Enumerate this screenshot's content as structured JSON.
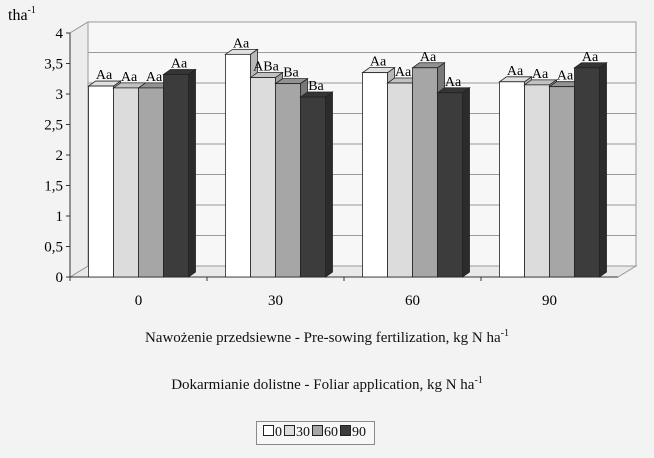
{
  "chart_data": {
    "type": "bar",
    "style": "3d-clustered-column",
    "ylabel": "tha",
    "ylabel_superscript": "-1",
    "ylim": [
      0,
      4
    ],
    "yticks": [
      "0",
      "0,5",
      "1",
      "1,5",
      "2",
      "2,5",
      "3",
      "3,5",
      "4"
    ],
    "ytick_values": [
      0,
      0.5,
      1,
      1.5,
      2,
      2.5,
      3,
      3.5,
      4
    ],
    "categories": [
      "0",
      "30",
      "60",
      "90"
    ],
    "xlabel": "Nawożenie przedsiewne - Pre-sowing fertilization, kg N ha",
    "xlabel_superscript": "-1",
    "series_title": "Dokarmianie dolistne - Foliar application, kg N ha",
    "series_title_superscript": "-1",
    "grid": true,
    "legend_position": "bottom-center",
    "series": [
      {
        "name": "0",
        "color": "#ffffff",
        "values": [
          3.13,
          3.65,
          3.35,
          3.2
        ],
        "labels": [
          "Aa",
          "Aa",
          "Aa",
          "Aa"
        ]
      },
      {
        "name": "30",
        "color": "#dcdcdc",
        "values": [
          3.1,
          3.27,
          3.18,
          3.15
        ],
        "labels": [
          "Aa",
          "ABa",
          "Aa",
          "Aa"
        ]
      },
      {
        "name": "60",
        "color": "#a6a6a6",
        "values": [
          3.1,
          3.17,
          3.43,
          3.12
        ],
        "labels": [
          "Aa",
          "Ba",
          "Aa",
          "Aa"
        ]
      },
      {
        "name": "90",
        "color": "#3c3c3c",
        "values": [
          3.32,
          2.95,
          3.02,
          3.43
        ],
        "labels": [
          "Aa",
          "Ba",
          "Aa",
          "Aa"
        ]
      }
    ]
  }
}
